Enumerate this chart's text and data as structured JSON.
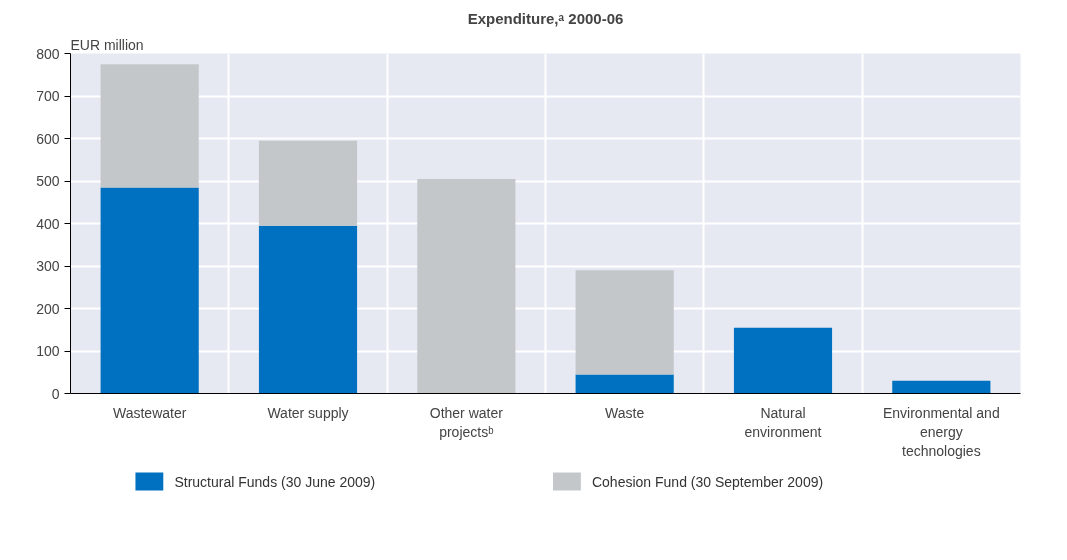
{
  "chart_data": {
    "type": "bar",
    "title": "Expenditure,ᵃ 2000-06",
    "ylabel": "EUR million",
    "categories": [
      "Wastewater",
      "Water supply",
      "Other water projectsᵇ",
      "Waste",
      "Natural environment",
      "Environmental and energy technologies"
    ],
    "stacked": true,
    "series": [
      {
        "name": "Structural Funds (30 June 2009)",
        "color": "#0070c0",
        "values": [
          485,
          395,
          0,
          45,
          155,
          30
        ]
      },
      {
        "name": "Cohesion Fund (30 September 2009)",
        "color": "#c4c7ca",
        "values": [
          290,
          200,
          505,
          245,
          0,
          0
        ]
      }
    ],
    "ylim": [
      0,
      800
    ],
    "yticks": [
      0,
      100,
      200,
      300,
      400,
      500,
      600,
      700,
      800
    ],
    "grid": true,
    "legend": "bottom"
  }
}
